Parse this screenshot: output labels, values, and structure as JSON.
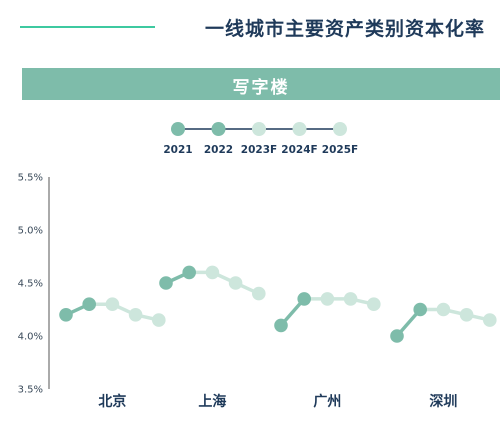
{
  "header": {
    "title": "一线城市主要资产类别资本化率",
    "section_label": "写字楼"
  },
  "colors": {
    "accent_line": "#3ec9a0",
    "banner": "#7ebcaa",
    "actual_point": "#7ebcaa",
    "forecast_point": "#cde6dc",
    "actual_line": "#7ebcaa",
    "forecast_line": "#cde6dc",
    "legend_line": "#1f3a5a",
    "axis": "#555555",
    "text_dark": "#1f3a5a"
  },
  "chart_data": {
    "type": "line",
    "title": "一线城市主要资产类别资本化率",
    "subtitle": "写字楼",
    "years": [
      "2021",
      "2022",
      "2023F",
      "2024F",
      "2025F"
    ],
    "actual_years": [
      "2021",
      "2022"
    ],
    "forecast_years": [
      "2023F",
      "2024F",
      "2025F"
    ],
    "ylim": [
      3.5,
      5.5
    ],
    "yticks": [
      "3.5%",
      "4.0%",
      "4.5%",
      "5.0%",
      "5.5%"
    ],
    "ytick_values": [
      3.5,
      4.0,
      4.5,
      5.0,
      5.5
    ],
    "legend_position": "top-center",
    "grid": false,
    "cities": [
      {
        "name": "北京",
        "values": [
          4.2,
          4.3,
          4.3,
          4.2,
          4.15
        ]
      },
      {
        "name": "上海",
        "values": [
          4.5,
          4.6,
          4.6,
          4.5,
          4.4
        ]
      },
      {
        "name": "广州",
        "values": [
          4.1,
          4.35,
          4.35,
          4.35,
          4.3
        ]
      },
      {
        "name": "深圳",
        "values": [
          4.0,
          4.25,
          4.25,
          4.2,
          4.15
        ]
      }
    ]
  }
}
